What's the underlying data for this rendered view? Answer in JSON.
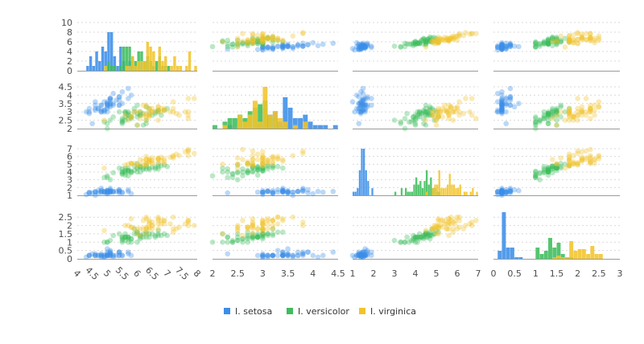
{
  "chart_data": {
    "type": "scatter",
    "title": "",
    "variables": [
      {
        "ticks": [
          4,
          4.5,
          5,
          5.5,
          6,
          6.5,
          7,
          7.5,
          8
        ],
        "range": [
          4,
          8
        ],
        "tick_labels": [
          "4",
          "4.5",
          "5",
          "5.5",
          "6",
          "6.5",
          "7",
          "7.5",
          "8"
        ]
      },
      {
        "ticks": [
          2,
          2.5,
          3,
          3.5,
          4,
          4.5
        ],
        "range": [
          2,
          4.5
        ],
        "tick_labels": [
          "2",
          "2.5",
          "3",
          "3.5",
          "4",
          "4.5"
        ]
      },
      {
        "ticks": [
          1,
          2,
          3,
          4,
          5,
          6,
          7
        ],
        "range": [
          1,
          7
        ],
        "tick_labels": [
          "1",
          "2",
          "3",
          "4",
          "5",
          "6",
          "7"
        ]
      },
      {
        "ticks": [
          0,
          0.5,
          1,
          1.5,
          2,
          2.5,
          3
        ],
        "range": [
          0,
          3
        ],
        "tick_labels": [
          "0",
          "0.5",
          "1",
          "1.5",
          "2",
          "2.5",
          "3"
        ]
      }
    ],
    "row_ticks": [
      {
        "ticks": [
          0,
          2,
          4,
          6,
          8,
          10
        ],
        "range": [
          0,
          10
        ]
      },
      {
        "ticks": [
          2,
          2.5,
          3,
          3.5,
          4,
          4.5
        ],
        "range": [
          2,
          4.5
        ]
      },
      {
        "ticks": [
          1,
          2,
          3,
          4,
          5,
          6,
          7
        ],
        "range": [
          1,
          7
        ]
      },
      {
        "ticks": [
          0,
          0.5,
          1,
          1.5,
          2,
          2.5
        ],
        "range": [
          0,
          2.8
        ]
      }
    ],
    "legend": {
      "position": "bottom-center"
    },
    "grid": true,
    "series": [
      {
        "name": "I. setosa",
        "color": "#3b8ee8",
        "points": [
          [
            5.1,
            3.5,
            1.4,
            0.2
          ],
          [
            4.9,
            3.0,
            1.4,
            0.2
          ],
          [
            4.7,
            3.2,
            1.3,
            0.2
          ],
          [
            4.6,
            3.1,
            1.5,
            0.2
          ],
          [
            5.0,
            3.6,
            1.4,
            0.2
          ],
          [
            5.4,
            3.9,
            1.7,
            0.4
          ],
          [
            4.6,
            3.4,
            1.4,
            0.3
          ],
          [
            5.0,
            3.4,
            1.5,
            0.2
          ],
          [
            4.4,
            2.9,
            1.4,
            0.2
          ],
          [
            4.9,
            3.1,
            1.5,
            0.1
          ],
          [
            5.4,
            3.7,
            1.5,
            0.2
          ],
          [
            4.8,
            3.4,
            1.6,
            0.2
          ],
          [
            4.8,
            3.0,
            1.4,
            0.1
          ],
          [
            4.3,
            3.0,
            1.1,
            0.1
          ],
          [
            5.8,
            4.0,
            1.2,
            0.2
          ],
          [
            5.7,
            4.4,
            1.5,
            0.4
          ],
          [
            5.4,
            3.9,
            1.3,
            0.4
          ],
          [
            5.1,
            3.5,
            1.4,
            0.3
          ],
          [
            5.7,
            3.8,
            1.7,
            0.3
          ],
          [
            5.1,
            3.8,
            1.5,
            0.3
          ],
          [
            5.4,
            3.4,
            1.7,
            0.2
          ],
          [
            5.1,
            3.7,
            1.5,
            0.4
          ],
          [
            4.6,
            3.6,
            1.0,
            0.2
          ],
          [
            5.1,
            3.3,
            1.7,
            0.5
          ],
          [
            4.8,
            3.4,
            1.9,
            0.2
          ],
          [
            5.0,
            3.0,
            1.6,
            0.2
          ],
          [
            5.0,
            3.4,
            1.6,
            0.4
          ],
          [
            5.2,
            3.5,
            1.5,
            0.2
          ],
          [
            5.2,
            3.4,
            1.4,
            0.2
          ],
          [
            4.7,
            3.2,
            1.6,
            0.2
          ],
          [
            4.8,
            3.1,
            1.6,
            0.2
          ],
          [
            5.4,
            3.4,
            1.5,
            0.4
          ],
          [
            5.2,
            4.1,
            1.5,
            0.1
          ],
          [
            5.5,
            4.2,
            1.4,
            0.2
          ],
          [
            4.9,
            3.1,
            1.5,
            0.2
          ],
          [
            5.0,
            3.2,
            1.2,
            0.2
          ],
          [
            5.5,
            3.5,
            1.3,
            0.2
          ],
          [
            4.9,
            3.6,
            1.4,
            0.1
          ],
          [
            4.4,
            3.0,
            1.3,
            0.2
          ],
          [
            5.1,
            3.4,
            1.5,
            0.2
          ],
          [
            5.0,
            3.5,
            1.3,
            0.3
          ],
          [
            4.5,
            2.3,
            1.3,
            0.3
          ],
          [
            4.4,
            3.2,
            1.3,
            0.2
          ],
          [
            5.0,
            3.5,
            1.6,
            0.6
          ],
          [
            5.1,
            3.8,
            1.9,
            0.4
          ],
          [
            4.8,
            3.0,
            1.4,
            0.3
          ],
          [
            5.1,
            3.8,
            1.6,
            0.2
          ],
          [
            4.6,
            3.2,
            1.4,
            0.2
          ],
          [
            5.3,
            3.7,
            1.5,
            0.2
          ],
          [
            5.0,
            3.3,
            1.4,
            0.2
          ]
        ]
      },
      {
        "name": "I. versicolor",
        "color": "#3dbd5b",
        "points": [
          [
            7.0,
            3.2,
            4.7,
            1.4
          ],
          [
            6.4,
            3.2,
            4.5,
            1.5
          ],
          [
            6.9,
            3.1,
            4.9,
            1.5
          ],
          [
            5.5,
            2.3,
            4.0,
            1.3
          ],
          [
            6.5,
            2.8,
            4.6,
            1.5
          ],
          [
            5.7,
            2.8,
            4.5,
            1.3
          ],
          [
            6.3,
            3.3,
            4.7,
            1.6
          ],
          [
            4.9,
            2.4,
            3.3,
            1.0
          ],
          [
            6.6,
            2.9,
            4.6,
            1.3
          ],
          [
            5.2,
            2.7,
            3.9,
            1.4
          ],
          [
            5.0,
            2.0,
            3.5,
            1.0
          ],
          [
            5.9,
            3.0,
            4.2,
            1.5
          ],
          [
            6.0,
            2.2,
            4.0,
            1.0
          ],
          [
            6.1,
            2.9,
            4.7,
            1.4
          ],
          [
            5.6,
            2.9,
            3.6,
            1.3
          ],
          [
            6.7,
            3.1,
            4.4,
            1.4
          ],
          [
            5.6,
            3.0,
            4.5,
            1.5
          ],
          [
            5.8,
            2.7,
            4.1,
            1.0
          ],
          [
            6.2,
            2.2,
            4.5,
            1.5
          ],
          [
            5.6,
            2.5,
            3.9,
            1.1
          ],
          [
            5.9,
            3.2,
            4.8,
            1.8
          ],
          [
            6.1,
            2.8,
            4.0,
            1.3
          ],
          [
            6.3,
            2.5,
            4.9,
            1.5
          ],
          [
            6.1,
            2.8,
            4.7,
            1.2
          ],
          [
            6.4,
            2.9,
            4.3,
            1.3
          ],
          [
            6.6,
            3.0,
            4.4,
            1.4
          ],
          [
            6.8,
            2.8,
            4.8,
            1.4
          ],
          [
            6.7,
            3.0,
            5.0,
            1.7
          ],
          [
            6.0,
            2.9,
            4.5,
            1.5
          ],
          [
            5.7,
            2.6,
            3.5,
            1.0
          ],
          [
            5.5,
            2.4,
            3.8,
            1.1
          ],
          [
            5.5,
            2.4,
            3.7,
            1.0
          ],
          [
            5.8,
            2.7,
            3.9,
            1.2
          ],
          [
            6.0,
            2.7,
            5.1,
            1.6
          ],
          [
            5.4,
            3.0,
            4.5,
            1.5
          ],
          [
            6.0,
            3.4,
            4.5,
            1.6
          ],
          [
            6.7,
            3.1,
            4.7,
            1.5
          ],
          [
            6.3,
            2.3,
            4.4,
            1.3
          ],
          [
            5.6,
            3.0,
            4.1,
            1.3
          ],
          [
            5.5,
            2.5,
            4.0,
            1.3
          ],
          [
            5.5,
            2.6,
            4.4,
            1.2
          ],
          [
            6.1,
            3.0,
            4.6,
            1.4
          ],
          [
            5.8,
            2.6,
            4.0,
            1.2
          ],
          [
            5.0,
            2.3,
            3.3,
            1.0
          ],
          [
            5.6,
            2.7,
            4.2,
            1.3
          ],
          [
            5.7,
            3.0,
            4.2,
            1.2
          ],
          [
            5.7,
            2.9,
            4.2,
            1.3
          ],
          [
            6.2,
            2.9,
            4.3,
            1.3
          ],
          [
            5.1,
            2.5,
            3.0,
            1.1
          ],
          [
            5.7,
            2.8,
            4.1,
            1.3
          ]
        ]
      },
      {
        "name": "I. virginica",
        "color": "#f2c42a",
        "points": [
          [
            6.3,
            3.3,
            6.0,
            2.5
          ],
          [
            5.8,
            2.7,
            5.1,
            1.9
          ],
          [
            7.1,
            3.0,
            5.9,
            2.1
          ],
          [
            6.3,
            2.9,
            5.6,
            1.8
          ],
          [
            6.5,
            3.0,
            5.8,
            2.2
          ],
          [
            7.6,
            3.0,
            6.6,
            2.1
          ],
          [
            4.9,
            2.5,
            4.5,
            1.7
          ],
          [
            7.3,
            2.9,
            6.3,
            1.8
          ],
          [
            6.7,
            2.5,
            5.8,
            1.8
          ],
          [
            7.2,
            3.6,
            6.1,
            2.5
          ],
          [
            6.5,
            3.2,
            5.1,
            2.0
          ],
          [
            6.4,
            2.7,
            5.3,
            1.9
          ],
          [
            6.8,
            3.0,
            5.5,
            2.1
          ],
          [
            5.7,
            2.5,
            5.0,
            2.0
          ],
          [
            5.8,
            2.8,
            5.1,
            2.4
          ],
          [
            6.4,
            3.2,
            5.3,
            2.3
          ],
          [
            6.5,
            3.0,
            5.5,
            1.8
          ],
          [
            7.7,
            3.8,
            6.7,
            2.2
          ],
          [
            7.7,
            2.6,
            6.9,
            2.3
          ],
          [
            6.0,
            2.2,
            5.0,
            1.5
          ],
          [
            6.9,
            3.2,
            5.7,
            2.3
          ],
          [
            5.6,
            2.8,
            4.9,
            2.0
          ],
          [
            7.7,
            2.8,
            6.7,
            2.0
          ],
          [
            6.3,
            2.7,
            4.9,
            1.8
          ],
          [
            6.7,
            3.3,
            5.7,
            2.1
          ],
          [
            7.2,
            3.2,
            6.0,
            1.8
          ],
          [
            6.2,
            2.8,
            4.8,
            1.8
          ],
          [
            6.1,
            3.0,
            4.9,
            1.8
          ],
          [
            6.4,
            2.8,
            5.6,
            2.1
          ],
          [
            7.2,
            3.0,
            5.8,
            1.6
          ],
          [
            7.4,
            2.8,
            6.1,
            1.9
          ],
          [
            7.9,
            3.8,
            6.4,
            2.0
          ],
          [
            6.4,
            2.8,
            5.6,
            2.2
          ],
          [
            6.3,
            2.8,
            5.1,
            1.5
          ],
          [
            6.1,
            2.6,
            5.6,
            1.4
          ],
          [
            7.7,
            3.0,
            6.1,
            2.3
          ],
          [
            6.3,
            3.4,
            5.6,
            2.4
          ],
          [
            6.4,
            3.1,
            5.5,
            1.8
          ],
          [
            6.0,
            3.0,
            4.8,
            1.8
          ],
          [
            6.9,
            3.1,
            5.4,
            2.1
          ],
          [
            6.7,
            3.1,
            5.6,
            2.4
          ],
          [
            6.9,
            3.1,
            5.1,
            2.3
          ],
          [
            5.8,
            2.7,
            5.1,
            1.9
          ],
          [
            6.8,
            3.2,
            5.9,
            2.3
          ],
          [
            6.7,
            3.3,
            5.7,
            2.5
          ],
          [
            6.7,
            3.0,
            5.2,
            2.3
          ],
          [
            6.3,
            2.5,
            5.0,
            1.9
          ],
          [
            6.5,
            3.0,
            5.2,
            2.0
          ],
          [
            6.2,
            3.4,
            5.4,
            2.3
          ],
          [
            5.9,
            3.0,
            5.1,
            1.8
          ]
        ]
      }
    ]
  }
}
